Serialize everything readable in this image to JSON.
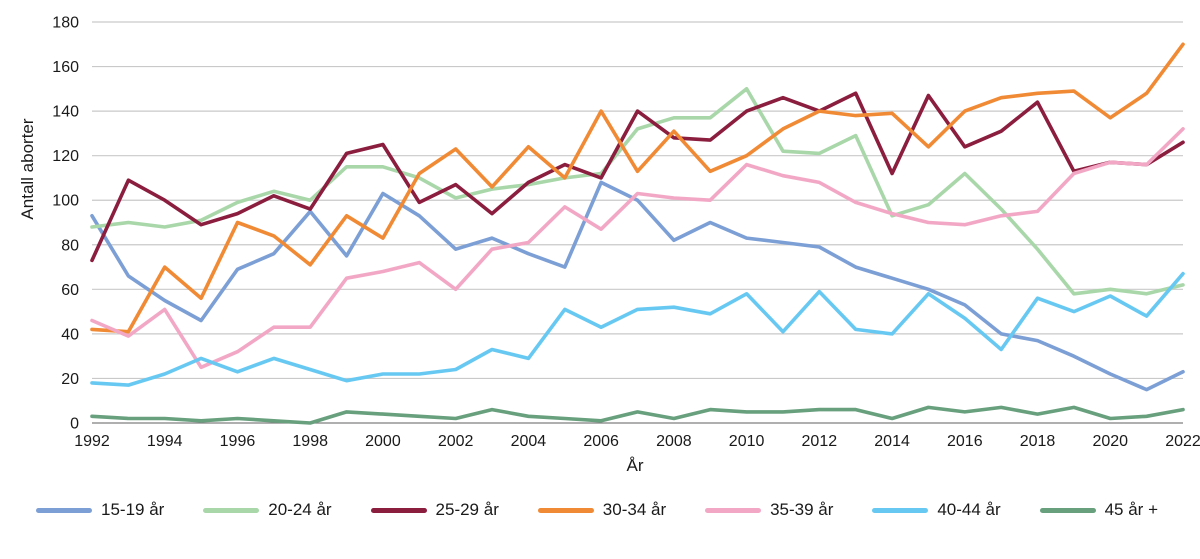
{
  "chart_data": {
    "type": "line",
    "title": "",
    "xlabel": "År",
    "ylabel": "Antall aborter",
    "grid": true,
    "legend_position": "bottom",
    "ylim": [
      0,
      180
    ],
    "y_ticks": [
      0,
      20,
      40,
      60,
      80,
      100,
      120,
      140,
      160,
      180
    ],
    "x": [
      1992,
      1993,
      1994,
      1995,
      1996,
      1997,
      1998,
      1999,
      2000,
      2001,
      2002,
      2003,
      2004,
      2005,
      2006,
      2007,
      2008,
      2009,
      2010,
      2011,
      2012,
      2013,
      2014,
      2015,
      2016,
      2017,
      2018,
      2019,
      2020,
      2021,
      2022
    ],
    "x_tick_labels": [
      1992,
      1994,
      1996,
      1998,
      2000,
      2002,
      2004,
      2006,
      2008,
      2010,
      2012,
      2014,
      2016,
      2018,
      2020,
      2022
    ],
    "series": [
      {
        "name": "15-19 år",
        "color": "#7C9FD6",
        "values": [
          93,
          66,
          55,
          46,
          69,
          76,
          95,
          75,
          103,
          93,
          78,
          83,
          76,
          70,
          108,
          100,
          82,
          90,
          83,
          81,
          79,
          70,
          65,
          60,
          53,
          40,
          37,
          30,
          22,
          15,
          23
        ]
      },
      {
        "name": "20-24 år",
        "color": "#A9D7AA",
        "values": [
          88,
          90,
          88,
          91,
          99,
          104,
          100,
          115,
          115,
          110,
          101,
          105,
          107,
          110,
          112,
          132,
          137,
          137,
          150,
          122,
          121,
          129,
          93,
          98,
          112,
          96,
          78,
          58,
          60,
          58,
          62
        ]
      },
      {
        "name": "25-29 år",
        "color": "#8B1D3F",
        "values": [
          73,
          109,
          100,
          89,
          94,
          102,
          96,
          121,
          125,
          99,
          107,
          94,
          108,
          116,
          110,
          140,
          128,
          127,
          140,
          146,
          140,
          148,
          112,
          147,
          124,
          131,
          144,
          113,
          117,
          116,
          126
        ]
      },
      {
        "name": "30-34 år",
        "color": "#F18A34",
        "values": [
          42,
          41,
          70,
          56,
          90,
          84,
          71,
          93,
          83,
          112,
          123,
          106,
          124,
          110,
          140,
          113,
          131,
          113,
          120,
          132,
          140,
          138,
          139,
          124,
          140,
          146,
          148,
          149,
          137,
          148,
          170
        ]
      },
      {
        "name": "35-39 år",
        "color": "#F2A8C5",
        "values": [
          46,
          39,
          51,
          25,
          32,
          43,
          43,
          65,
          68,
          72,
          60,
          78,
          81,
          97,
          87,
          103,
          101,
          100,
          116,
          111,
          108,
          99,
          94,
          90,
          89,
          93,
          95,
          112,
          117,
          116,
          132
        ]
      },
      {
        "name": "40-44 år",
        "color": "#67C9F2",
        "values": [
          18,
          17,
          22,
          29,
          23,
          29,
          24,
          19,
          22,
          22,
          24,
          33,
          29,
          51,
          43,
          51,
          52,
          49,
          58,
          41,
          59,
          42,
          40,
          58,
          47,
          33,
          56,
          50,
          57,
          48,
          67
        ]
      },
      {
        "name": "45 år +",
        "color": "#68A07E",
        "values": [
          3,
          2,
          2,
          1,
          2,
          1,
          0,
          5,
          4,
          3,
          2,
          6,
          3,
          2,
          1,
          5,
          2,
          6,
          5,
          5,
          6,
          6,
          2,
          7,
          5,
          7,
          4,
          7,
          2,
          3,
          6
        ]
      }
    ]
  }
}
